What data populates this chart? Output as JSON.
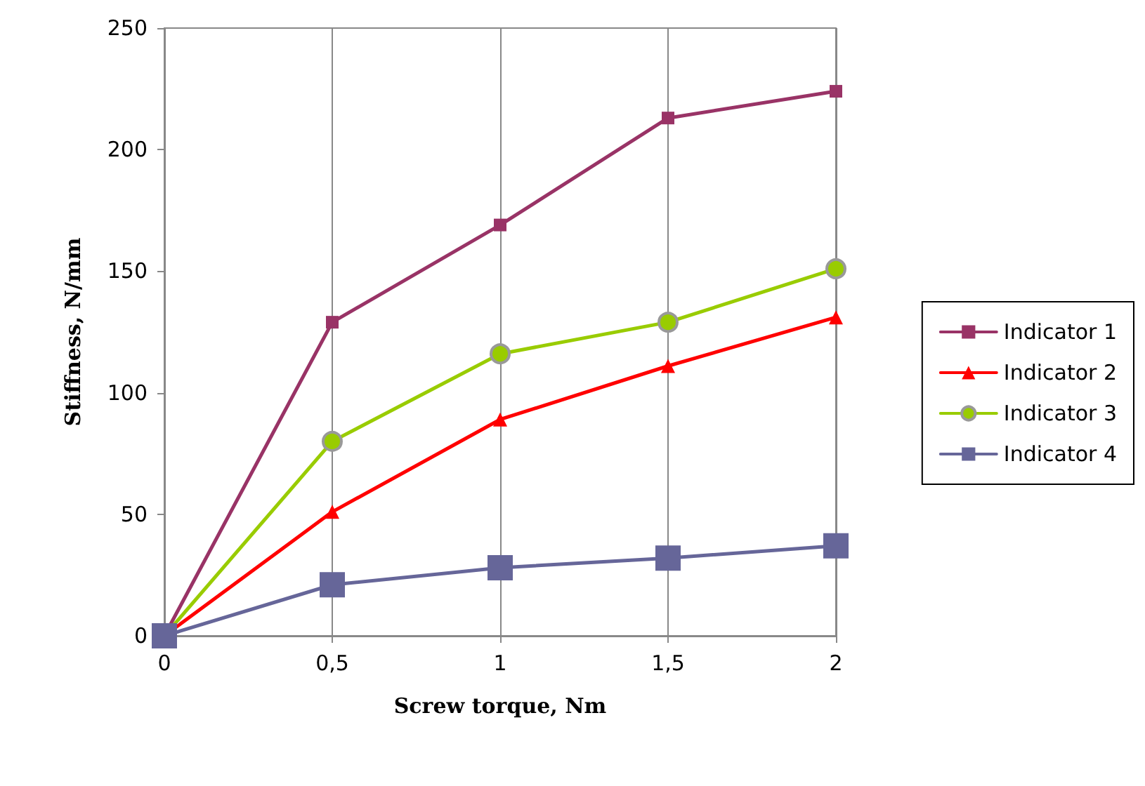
{
  "chart_data": {
    "type": "line",
    "xlabel": "Screw torque, Nm",
    "ylabel": "Stiffness, N/mm",
    "x": [
      0,
      0.5,
      1,
      1.5,
      2
    ],
    "series": [
      {
        "name": "Indicator 1",
        "color": "#993366",
        "marker": "square",
        "values": [
          0,
          129,
          169,
          213,
          224
        ]
      },
      {
        "name": "Indicator 2",
        "color": "#ff0000",
        "marker": "triangle",
        "values": [
          0,
          51,
          89,
          111,
          131
        ]
      },
      {
        "name": "Indicator 3",
        "color": "#99cc00",
        "marker": "circle",
        "values": [
          0,
          80,
          116,
          129,
          151
        ]
      },
      {
        "name": "Indicator 4",
        "color": "#666699",
        "marker": "square",
        "values": [
          0,
          21,
          28,
          32,
          37
        ]
      }
    ],
    "xlim": [
      0,
      2
    ],
    "xticks": [
      0,
      {
        "value": 0.5,
        "label": "0,5"
      },
      1,
      {
        "value": 1.5,
        "label": "1,5"
      },
      2
    ],
    "ylim": [
      0,
      250
    ],
    "yticks": [
      0,
      50,
      100,
      150,
      200,
      250
    ],
    "grid": "x",
    "legend": "right",
    "line_style": "solid"
  }
}
